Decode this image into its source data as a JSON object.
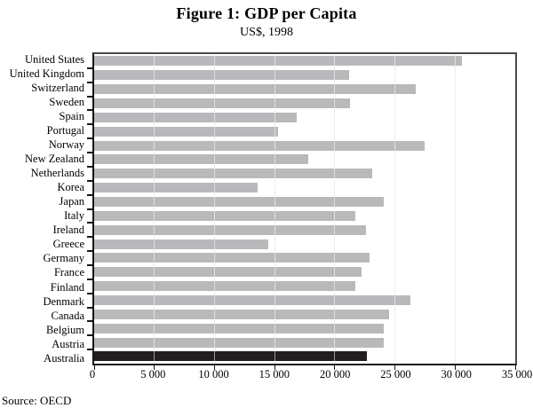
{
  "figure": {
    "title": "Figure 1: GDP per Capita",
    "subtitle": "US$, 1998",
    "source_note": "Source: OECD"
  },
  "chart_data": {
    "type": "bar",
    "orientation": "horizontal",
    "title": "Figure 1: GDP per Capita",
    "subtitle": "US$, 1998",
    "xlabel": "",
    "ylabel": "",
    "categories": [
      "United States",
      "United Kingdom",
      "Switzerland",
      "Sweden",
      "Spain",
      "Portugal",
      "Norway",
      "New Zealand",
      "Netherlands",
      "Korea",
      "Japan",
      "Italy",
      "Ireland",
      "Greece",
      "Germany",
      "France",
      "Finland",
      "Denmark",
      "Canada",
      "Belgium",
      "Austria",
      "Australia"
    ],
    "values": [
      30600,
      21200,
      26700,
      21300,
      16800,
      15300,
      27500,
      17800,
      23100,
      13600,
      24100,
      21700,
      22600,
      14500,
      22900,
      22200,
      21700,
      26300,
      24500,
      24100,
      24100,
      22700
    ],
    "xlim": [
      0,
      35000
    ],
    "xticks": [
      0,
      5000,
      10000,
      15000,
      20000,
      25000,
      30000,
      35000
    ],
    "xtick_labels": [
      "0",
      "5 000",
      "10 000",
      "15 000",
      "20 000",
      "25 000",
      "30 000",
      "35 000"
    ],
    "grid": "vertical",
    "legend": "none",
    "bar_color": "#b9b9bc",
    "highlight_category": "Australia",
    "highlight_color": "#221e20",
    "source": "Source: OECD"
  }
}
